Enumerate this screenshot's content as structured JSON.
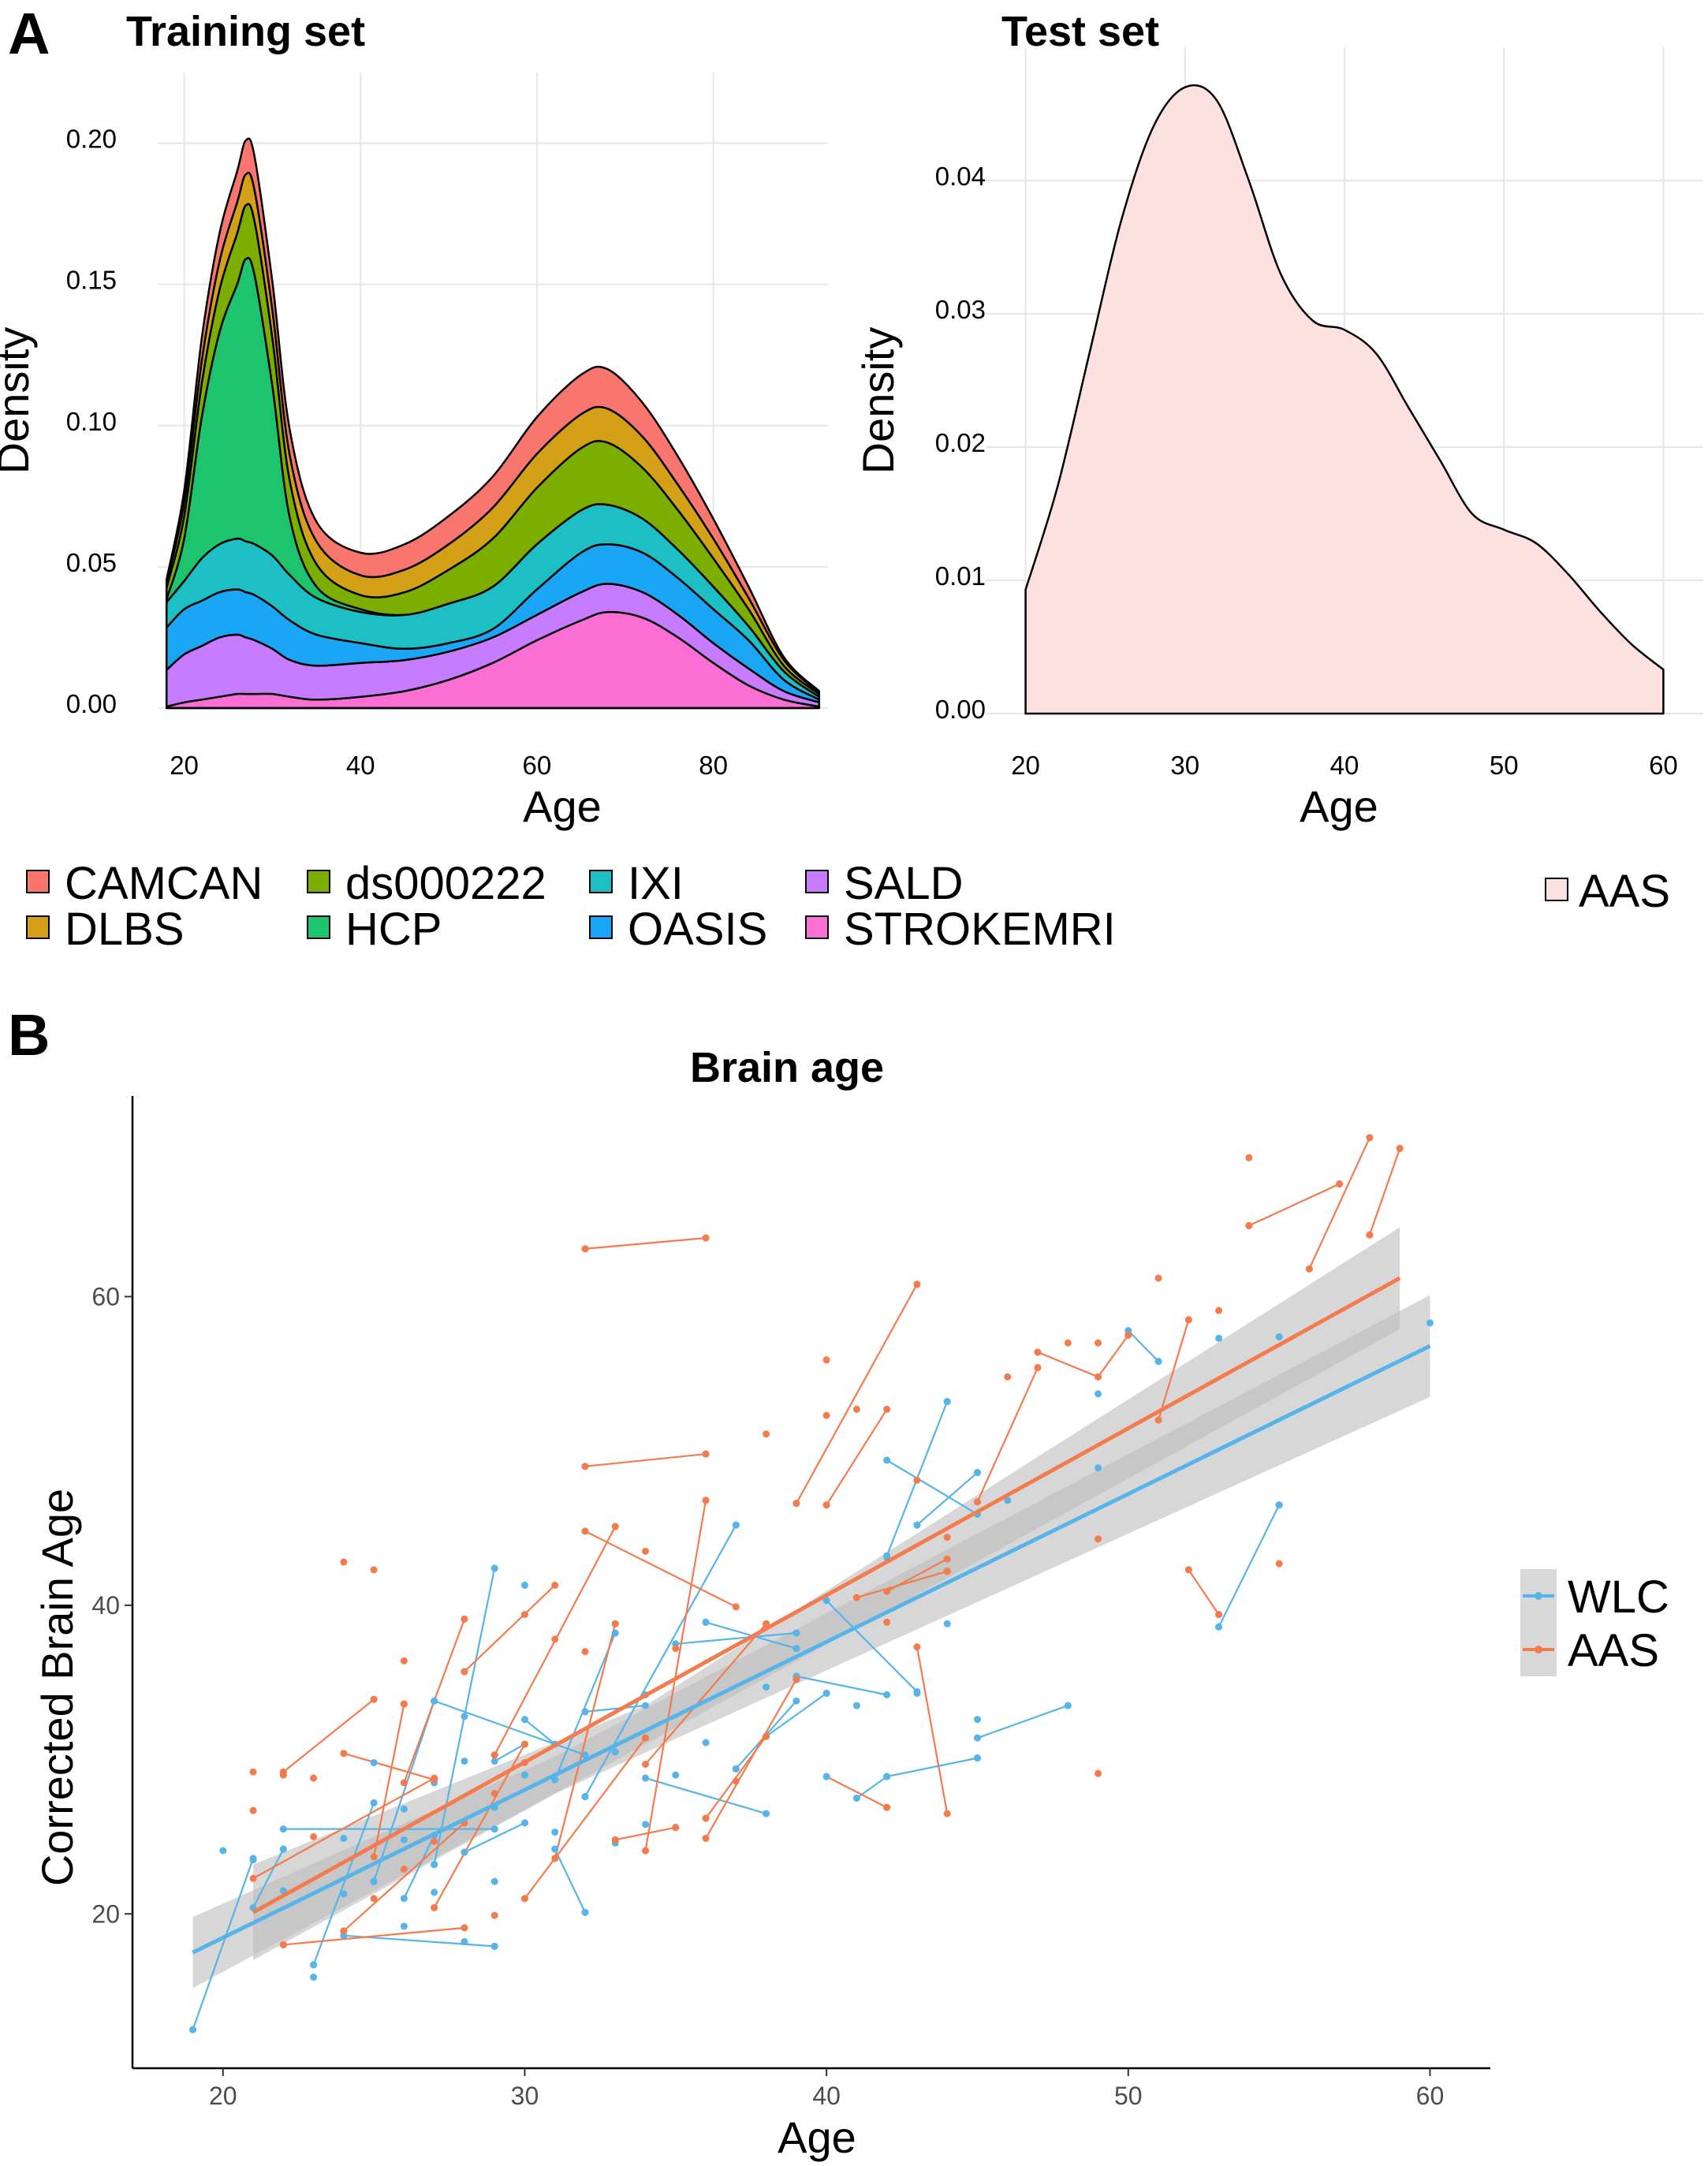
{
  "panel_labels": {
    "a": "A",
    "b": "B"
  },
  "colors": {
    "CAMCAN": "#f8766d",
    "DLBS": "#d4a017",
    "ds000222": "#7cae00",
    "HCP": "#1ec46d",
    "IXI": "#1ebfc4",
    "OASIS": "#1aa6f5",
    "SALD": "#c77cff",
    "STROKEMRI": "#fb6fd4",
    "AAS_fill": "#fde1e1",
    "WLC": "#56b4e9",
    "AAS": "#f47b4e",
    "ribbon": "#bdbdbd"
  },
  "icons": {
    "legend_key": "square-key-icon"
  },
  "chart_data": [
    {
      "id": "training",
      "type": "area",
      "stacked": true,
      "title": "Training set",
      "xlabel": "Age",
      "ylabel": "Density",
      "xlim": [
        17,
        93
      ],
      "ylim": [
        0,
        0.225
      ],
      "xticks": [
        20,
        40,
        60,
        80
      ],
      "yticks": [
        0,
        0.05,
        0.1,
        0.15,
        0.2
      ],
      "ytick_labels": [
        "0.00",
        "0.05",
        "0.10",
        "0.15",
        "0.20"
      ],
      "grid": true,
      "legend_position": "bottom",
      "x": [
        18,
        20,
        22,
        24,
        26,
        27,
        28,
        30,
        32,
        35,
        40,
        45,
        50,
        55,
        60,
        65,
        68,
        72,
        76,
        80,
        84,
        88,
        92
      ],
      "series": [
        {
          "name": "STROKEMRI",
          "values": [
            0.0005,
            0.002,
            0.003,
            0.004,
            0.005,
            0.005,
            0.005,
            0.005,
            0.004,
            0.003,
            0.004,
            0.006,
            0.01,
            0.016,
            0.024,
            0.031,
            0.034,
            0.032,
            0.025,
            0.016,
            0.008,
            0.003,
            0.0005
          ]
        },
        {
          "name": "SALD",
          "values": [
            0.013,
            0.017,
            0.019,
            0.021,
            0.021,
            0.02,
            0.019,
            0.016,
            0.013,
            0.012,
            0.012,
            0.011,
            0.01,
            0.009,
            0.009,
            0.01,
            0.01,
            0.009,
            0.008,
            0.007,
            0.006,
            0.003,
            0.0015
          ]
        },
        {
          "name": "OASIS",
          "values": [
            0.015,
            0.016,
            0.016,
            0.016,
            0.016,
            0.016,
            0.016,
            0.015,
            0.014,
            0.011,
            0.007,
            0.004,
            0.003,
            0.003,
            0.009,
            0.014,
            0.014,
            0.014,
            0.013,
            0.012,
            0.01,
            0.004,
            0.001
          ]
        },
        {
          "name": "IXI",
          "values": [
            0.009,
            0.01,
            0.015,
            0.017,
            0.018,
            0.018,
            0.018,
            0.018,
            0.016,
            0.013,
            0.011,
            0.012,
            0.014,
            0.015,
            0.016,
            0.015,
            0.014,
            0.012,
            0.01,
            0.008,
            0.005,
            0.003,
            0.001
          ]
        },
        {
          "name": "HCP",
          "values": [
            0.001,
            0.015,
            0.05,
            0.075,
            0.09,
            0.1,
            0.095,
            0.06,
            0.02,
            0.004,
            0.001,
            0,
            0,
            0,
            0,
            0,
            0,
            0,
            0,
            0,
            0,
            0,
            0
          ]
        },
        {
          "name": "ds000222",
          "values": [
            0.004,
            0.008,
            0.012,
            0.015,
            0.018,
            0.019,
            0.019,
            0.017,
            0.013,
            0.008,
            0.005,
            0.008,
            0.012,
            0.017,
            0.02,
            0.022,
            0.022,
            0.018,
            0.014,
            0.01,
            0.006,
            0.002,
            0.001
          ]
        },
        {
          "name": "DLBS",
          "values": [
            0.002,
            0.005,
            0.008,
            0.01,
            0.011,
            0.011,
            0.011,
            0.01,
            0.009,
            0.008,
            0.007,
            0.008,
            0.009,
            0.011,
            0.012,
            0.012,
            0.012,
            0.011,
            0.009,
            0.007,
            0.004,
            0.002,
            0.0005
          ]
        },
        {
          "name": "CAMCAN",
          "values": [
            0.001,
            0.004,
            0.008,
            0.01,
            0.011,
            0.012,
            0.012,
            0.01,
            0.009,
            0.007,
            0.008,
            0.009,
            0.01,
            0.011,
            0.013,
            0.014,
            0.014,
            0.012,
            0.01,
            0.007,
            0.004,
            0.001,
            0.0005
          ]
        }
      ]
    },
    {
      "id": "test",
      "type": "area",
      "title": "Test set",
      "xlabel": "Age",
      "ylabel": "Density",
      "xlim": [
        17.5,
        62.5
      ],
      "ylim": [
        0,
        0.05
      ],
      "xticks": [
        20,
        30,
        40,
        50,
        60
      ],
      "yticks": [
        0,
        0.01,
        0.02,
        0.03,
        0.04
      ],
      "ytick_labels": [
        "0.00",
        "0.01",
        "0.02",
        "0.03",
        "0.04"
      ],
      "grid": true,
      "legend_position": "right",
      "series": [
        {
          "name": "AAS",
          "x": [
            20,
            22,
            24,
            26,
            28,
            30,
            32,
            34,
            36,
            38,
            40,
            42,
            44,
            46,
            48,
            50,
            52,
            54,
            56,
            58,
            60
          ],
          "values": [
            0.0093,
            0.017,
            0.027,
            0.037,
            0.044,
            0.047,
            0.046,
            0.04,
            0.033,
            0.0295,
            0.0288,
            0.027,
            0.023,
            0.019,
            0.015,
            0.0138,
            0.0128,
            0.0105,
            0.0077,
            0.0052,
            0.0033
          ]
        }
      ]
    },
    {
      "id": "brain_age",
      "type": "scatter",
      "title": "Brain age",
      "xlabel": "Age",
      "ylabel": "Corrected Brain Age",
      "xlim": [
        17,
        62
      ],
      "ylim": [
        10,
        73
      ],
      "xticks": [
        20,
        30,
        40,
        50,
        60
      ],
      "yticks": [
        20,
        40,
        60
      ],
      "grid": false,
      "legend_position": "right",
      "series": [
        {
          "name": "WLC",
          "x": [
            19,
            20,
            21,
            21,
            22,
            22,
            23,
            23,
            24,
            24,
            24,
            25,
            25,
            25,
            26,
            26,
            26,
            27,
            27,
            27,
            27,
            28,
            28,
            28,
            28,
            29,
            29,
            29,
            29,
            30,
            30,
            30,
            31,
            31,
            31,
            31,
            32,
            32,
            32,
            33,
            33,
            33,
            34,
            34,
            34,
            35,
            35,
            36,
            36,
            36,
            37,
            37,
            38,
            38,
            39,
            39,
            40,
            40,
            41,
            41,
            42,
            42,
            43,
            43,
            44,
            44,
            45,
            45,
            45,
            46,
            48,
            49,
            49,
            51,
            53,
            53,
            55,
            55,
            60
          ],
          "values": [
            12.5,
            24.1,
            23.5,
            20.4,
            24.2,
            21.5,
            15.9,
            16.7,
            18.6,
            21.3,
            24.9,
            22.1,
            27.2,
            29.8,
            19.2,
            24.8,
            26.8,
            33.8,
            28.5,
            23.2,
            21.4,
            18.2,
            24.0,
            29.9,
            32.8,
            42.4,
            22.1,
            26.9,
            17.9,
            41.3,
            25.9,
            29.0,
            24.2,
            28.7,
            31.0,
            25.3,
            20.1,
            33.1,
            27.6,
            38.2,
            30.5,
            24.6,
            28.8,
            25.8,
            34.2,
            37.5,
            29.0,
            38.9,
            31.1,
            26.2,
            45.2,
            29.4,
            26.5,
            34.7,
            35.4,
            38.2,
            28.9,
            34.3,
            27.5,
            33.5,
            43.1,
            28.9,
            45.2,
            34.3,
            53.2,
            38.8,
            48.6,
            32.6,
            30.1,
            46.8,
            33.5,
            48.9,
            53.7,
            55.8,
            57.3,
            38.6,
            46.5,
            57.4,
            58.3
          ]
        },
        {
          "name": "AAS",
          "x": [
            21,
            21,
            22,
            22,
            23,
            23,
            24,
            24,
            24,
            25,
            25,
            25,
            26,
            26,
            26,
            27,
            27,
            27,
            28,
            28,
            28,
            29,
            29,
            29,
            30,
            30,
            30,
            31,
            31,
            32,
            32,
            32,
            32,
            33,
            33,
            33,
            34,
            34,
            34,
            35,
            35,
            36,
            36,
            36,
            36,
            37,
            38,
            38,
            39,
            39,
            40,
            40,
            40,
            41,
            41,
            42,
            42,
            43,
            43,
            44,
            44,
            45,
            46,
            47,
            47,
            48,
            49,
            49,
            49,
            50,
            51,
            52,
            52,
            53,
            53,
            54,
            54,
            55,
            56,
            57,
            58,
            58,
            59
          ],
          "values": [
            29.2,
            26.7,
            29.0,
            18.0,
            28.8,
            25.0,
            42.8,
            30.4,
            18.9,
            42.3,
            33.9,
            21.0,
            36.4,
            33.6,
            22.9,
            28.7,
            24.7,
            20.4,
            39.1,
            35.7,
            25.9,
            30.3,
            27.8,
            19.9,
            39.4,
            29.8,
            21.0,
            37.8,
            23.6,
            63.1,
            49.0,
            44.8,
            37.0,
            45.1,
            38.8,
            24.8,
            43.5,
            31.4,
            24.1,
            37.2,
            25.6,
            63.8,
            49.8,
            46.8,
            26.2,
            28.6,
            51.1,
            38.8,
            46.6,
            35.2,
            55.9,
            52.3,
            46.5,
            52.7,
            40.5,
            38.9,
            26.9,
            60.8,
            48.1,
            44.4,
            42.2,
            46.7,
            54.8,
            56.4,
            55.4,
            57.0,
            57.0,
            44.3,
            29.1,
            57.5,
            61.2,
            58.5,
            42.3,
            59.1,
            39.4,
            69.0,
            64.6,
            42.7,
            61.8,
            67.3,
            70.3,
            64.0,
            69.6
          ]
        }
      ],
      "pairs": {
        "WLC": [
          [
            19,
            12.5,
            21,
            23.6
          ],
          [
            21,
            20.4,
            22,
            24.2
          ],
          [
            22,
            25.5,
            29,
            25.5
          ],
          [
            23,
            16.7,
            25,
            27.2
          ],
          [
            24,
            18.6,
            29,
            17.9
          ],
          [
            25,
            22.1,
            27,
            33.8
          ],
          [
            26,
            21.0,
            27,
            25.1
          ],
          [
            27,
            33.8,
            32,
            30.3
          ],
          [
            27,
            23.2,
            29,
            42.4
          ],
          [
            28,
            24.0,
            30,
            25.9
          ],
          [
            29,
            29.9,
            30,
            31.0
          ],
          [
            30,
            32.6,
            31,
            31.0
          ],
          [
            31,
            24.2,
            32,
            20.1
          ],
          [
            31,
            28.7,
            33,
            38.2
          ],
          [
            32,
            27.6,
            37,
            45.2
          ],
          [
            32,
            33.1,
            34,
            33.5
          ],
          [
            34,
            28.8,
            38,
            26.5
          ],
          [
            35,
            37.5,
            39,
            38.2
          ],
          [
            36,
            38.9,
            39,
            37.2
          ],
          [
            37,
            29.4,
            39,
            33.8
          ],
          [
            38,
            31.5,
            40,
            34.3
          ],
          [
            39,
            35.4,
            42,
            34.2
          ],
          [
            40,
            40.3,
            43,
            34.4
          ],
          [
            41,
            27.5,
            42,
            28.9
          ],
          [
            42,
            28.9,
            45,
            30.1
          ],
          [
            42,
            43.2,
            44,
            53.2
          ],
          [
            42,
            49.4,
            45,
            45.9
          ],
          [
            43,
            45.2,
            45,
            48.6
          ],
          [
            45,
            31.4,
            48,
            33.5
          ],
          [
            53,
            38.6,
            55,
            46.5
          ],
          [
            50,
            57.8,
            51,
            55.8
          ]
        ],
        "AAS": [
          [
            21,
            22.3,
            27,
            28.8
          ],
          [
            22,
            18.0,
            28,
            19.1
          ],
          [
            22,
            29.2,
            25,
            33.9
          ],
          [
            24,
            30.4,
            27,
            28.7
          ],
          [
            24,
            18.9,
            28,
            25.9
          ],
          [
            25,
            23.7,
            26,
            33.6
          ],
          [
            26,
            28.5,
            28,
            39.1
          ],
          [
            27,
            20.4,
            30,
            31.0
          ],
          [
            28,
            35.7,
            31,
            41.3
          ],
          [
            29,
            30.3,
            33,
            45.1
          ],
          [
            30,
            21.0,
            34,
            31.4
          ],
          [
            31,
            23.6,
            33,
            38.8
          ],
          [
            32,
            49.0,
            36,
            49.8
          ],
          [
            32,
            63.1,
            36,
            63.8
          ],
          [
            32,
            44.8,
            37,
            39.9
          ],
          [
            33,
            24.8,
            35,
            25.6
          ],
          [
            34,
            24.1,
            36,
            46.8
          ],
          [
            34,
            29.7,
            38,
            38.8
          ],
          [
            36,
            26.2,
            38,
            31.5
          ],
          [
            36,
            24.9,
            39,
            35.2
          ],
          [
            39,
            46.6,
            43,
            60.8
          ],
          [
            40,
            28.9,
            42,
            26.9
          ],
          [
            40,
            46.5,
            42,
            52.7
          ],
          [
            41,
            40.5,
            44,
            42.2
          ],
          [
            42,
            40.9,
            44,
            43.0
          ],
          [
            44,
            26.5,
            43,
            37.3
          ],
          [
            45,
            46.7,
            47,
            55.4
          ],
          [
            47,
            56.4,
            49,
            54.8
          ],
          [
            50,
            57.5,
            49,
            54.8
          ],
          [
            51,
            52.0,
            52,
            58.5
          ],
          [
            53,
            39.4,
            52,
            42.3
          ],
          [
            54,
            64.6,
            57,
            67.3
          ],
          [
            56,
            61.8,
            58,
            70.3
          ],
          [
            58,
            64.0,
            59,
            69.6
          ]
        ]
      },
      "regression": {
        "WLC": {
          "x0": 19,
          "x1": 60,
          "y0": 17.5,
          "y1": 56.8
        },
        "AAS": {
          "x0": 21,
          "x1": 59,
          "y0": 20.1,
          "y1": 61.2
        }
      },
      "ci": {
        "WLC": {
          "x0": 19,
          "x1": 60,
          "lo0": 15.2,
          "hi0": 19.8,
          "lo_mid": 27.8,
          "hi_mid": 30.2,
          "lo1": 53.5,
          "hi1": 60.1,
          "xmid": 31
        },
        "AAS": {
          "x0": 21,
          "x1": 59,
          "lo0": 17.0,
          "hi0": 23.2,
          "lo_mid": 31.0,
          "hi_mid": 33.5,
          "lo1": 57.9,
          "hi1": 64.5,
          "xmid": 34
        }
      }
    }
  ]
}
